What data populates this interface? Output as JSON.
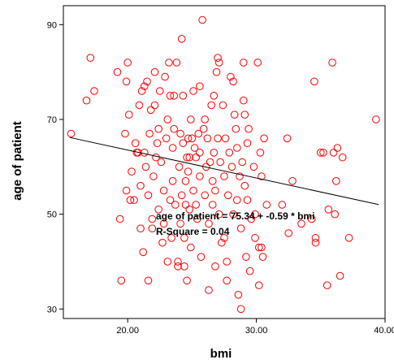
{
  "chart_data": {
    "type": "scatter",
    "xlabel": "bmi",
    "ylabel": "age of patient",
    "xlim": [
      15,
      40
    ],
    "ylim": [
      28,
      94
    ],
    "x_ticks": [
      20,
      30,
      40
    ],
    "x_tick_labels": [
      "20.00",
      "30.00",
      "40.00"
    ],
    "y_ticks": [
      30,
      50,
      70,
      90
    ],
    "y_tick_labels": [
      "30",
      "50",
      "70",
      "90"
    ],
    "grid": false,
    "marker_color": "#ff0000",
    "line_color": "#000000",
    "fit_line": {
      "intercept": 75.34,
      "slope": -0.59,
      "x_start": 15.5,
      "x_end": 39.5
    },
    "annotations": [
      "age of patient = 75.34 + -0.59 * bmi",
      "R-Square = 0.04"
    ],
    "points": [
      [
        15.6,
        67
      ],
      [
        16.8,
        74
      ],
      [
        17.1,
        83
      ],
      [
        17.4,
        76
      ],
      [
        19.2,
        80
      ],
      [
        19.5,
        36
      ],
      [
        19.4,
        49
      ],
      [
        19.8,
        67
      ],
      [
        19.9,
        78
      ],
      [
        20.0,
        82
      ],
      [
        19.9,
        55
      ],
      [
        20.1,
        71
      ],
      [
        20.2,
        53
      ],
      [
        20.3,
        59
      ],
      [
        20.5,
        53
      ],
      [
        20.6,
        65
      ],
      [
        20.7,
        63
      ],
      [
        20.8,
        63
      ],
      [
        20.9,
        73
      ],
      [
        21.0,
        56
      ],
      [
        21.0,
        47
      ],
      [
        21.1,
        76
      ],
      [
        21.2,
        42
      ],
      [
        21.3,
        77
      ],
      [
        21.3,
        63
      ],
      [
        21.4,
        60
      ],
      [
        21.5,
        78
      ],
      [
        21.6,
        54
      ],
      [
        21.7,
        67
      ],
      [
        21.8,
        72
      ],
      [
        21.9,
        49
      ],
      [
        21.6,
        36
      ],
      [
        21.9,
        47
      ],
      [
        22.0,
        58
      ],
      [
        22.1,
        80
      ],
      [
        22.1,
        73
      ],
      [
        22.2,
        62
      ],
      [
        22.3,
        65
      ],
      [
        22.4,
        68
      ],
      [
        22.4,
        51
      ],
      [
        22.5,
        76
      ],
      [
        22.6,
        61
      ],
      [
        22.7,
        44
      ],
      [
        22.8,
        55
      ],
      [
        22.8,
        48
      ],
      [
        22.9,
        79
      ],
      [
        23.0,
        66
      ],
      [
        23.1,
        70
      ],
      [
        23.1,
        40
      ],
      [
        23.2,
        82
      ],
      [
        23.3,
        75
      ],
      [
        23.3,
        53
      ],
      [
        23.4,
        45
      ],
      [
        23.5,
        64
      ],
      [
        23.5,
        57
      ],
      [
        23.6,
        75
      ],
      [
        23.6,
        68
      ],
      [
        23.7,
        52
      ],
      [
        23.8,
        82
      ],
      [
        23.9,
        40
      ],
      [
        23.9,
        39
      ],
      [
        24.0,
        60
      ],
      [
        24.1,
        67
      ],
      [
        24.1,
        48
      ],
      [
        24.2,
        87
      ],
      [
        24.2,
        54
      ],
      [
        24.3,
        75
      ],
      [
        24.3,
        65
      ],
      [
        24.4,
        45
      ],
      [
        24.4,
        39
      ],
      [
        24.5,
        57
      ],
      [
        24.5,
        52
      ],
      [
        24.6,
        62
      ],
      [
        24.6,
        36
      ],
      [
        24.7,
        66
      ],
      [
        24.7,
        59
      ],
      [
        24.8,
        51
      ],
      [
        24.8,
        62
      ],
      [
        24.9,
        70
      ],
      [
        24.9,
        43
      ],
      [
        25.0,
        66
      ],
      [
        25.1,
        76
      ],
      [
        25.1,
        55
      ],
      [
        25.2,
        64
      ],
      [
        25.3,
        62
      ],
      [
        25.3,
        52
      ],
      [
        25.4,
        49
      ],
      [
        25.5,
        67
      ],
      [
        25.6,
        77
      ],
      [
        25.6,
        63
      ],
      [
        25.6,
        58
      ],
      [
        25.7,
        41
      ],
      [
        25.8,
        91
      ],
      [
        25.9,
        68
      ],
      [
        26.0,
        54
      ],
      [
        26.0,
        70
      ],
      [
        26.1,
        60
      ],
      [
        26.2,
        66
      ],
      [
        26.3,
        48
      ],
      [
        26.3,
        34
      ],
      [
        26.4,
        61
      ],
      [
        26.5,
        73
      ],
      [
        26.6,
        57
      ],
      [
        26.6,
        52
      ],
      [
        26.7,
        75
      ],
      [
        26.7,
        63
      ],
      [
        26.8,
        55
      ],
      [
        26.8,
        39
      ],
      [
        26.9,
        80
      ],
      [
        27.0,
        83
      ],
      [
        27.0,
        66
      ],
      [
        27.1,
        82
      ],
      [
        27.1,
        50
      ],
      [
        27.2,
        61
      ],
      [
        27.3,
        44
      ],
      [
        27.4,
        73
      ],
      [
        27.5,
        58
      ],
      [
        27.5,
        45
      ],
      [
        27.6,
        66
      ],
      [
        27.7,
        40
      ],
      [
        27.7,
        36
      ],
      [
        27.8,
        54
      ],
      [
        27.9,
        63
      ],
      [
        28.0,
        79
      ],
      [
        28.1,
        60
      ],
      [
        28.2,
        78
      ],
      [
        28.2,
        50
      ],
      [
        28.3,
        71
      ],
      [
        28.4,
        68
      ],
      [
        28.5,
        64
      ],
      [
        28.5,
        53
      ],
      [
        28.6,
        33
      ],
      [
        28.7,
        58
      ],
      [
        28.8,
        47
      ],
      [
        28.8,
        30
      ],
      [
        28.9,
        61
      ],
      [
        29.0,
        82
      ],
      [
        29.0,
        74
      ],
      [
        29.1,
        71
      ],
      [
        29.1,
        56
      ],
      [
        29.2,
        41
      ],
      [
        29.3,
        65
      ],
      [
        29.3,
        53
      ],
      [
        29.4,
        68
      ],
      [
        29.5,
        38
      ],
      [
        29.6,
        49
      ],
      [
        29.8,
        60
      ],
      [
        29.9,
        50
      ],
      [
        29.9,
        45
      ],
      [
        30.1,
        82
      ],
      [
        30.2,
        43
      ],
      [
        30.2,
        35
      ],
      [
        30.3,
        63
      ],
      [
        30.4,
        58
      ],
      [
        30.4,
        43
      ],
      [
        30.5,
        41
      ],
      [
        30.6,
        66
      ],
      [
        30.8,
        52
      ],
      [
        32.0,
        52
      ],
      [
        32.4,
        66
      ],
      [
        32.5,
        46
      ],
      [
        32.8,
        57
      ],
      [
        33.5,
        48
      ],
      [
        34.3,
        49
      ],
      [
        34.5,
        78
      ],
      [
        34.6,
        45
      ],
      [
        34.6,
        44
      ],
      [
        35.0,
        63
      ],
      [
        35.2,
        63
      ],
      [
        35.5,
        35
      ],
      [
        35.6,
        51
      ],
      [
        35.9,
        82
      ],
      [
        36.0,
        63
      ],
      [
        36.1,
        50
      ],
      [
        36.2,
        57
      ],
      [
        36.3,
        64
      ],
      [
        36.5,
        37
      ],
      [
        36.7,
        62
      ],
      [
        37.2,
        45
      ],
      [
        39.3,
        70
      ]
    ]
  }
}
